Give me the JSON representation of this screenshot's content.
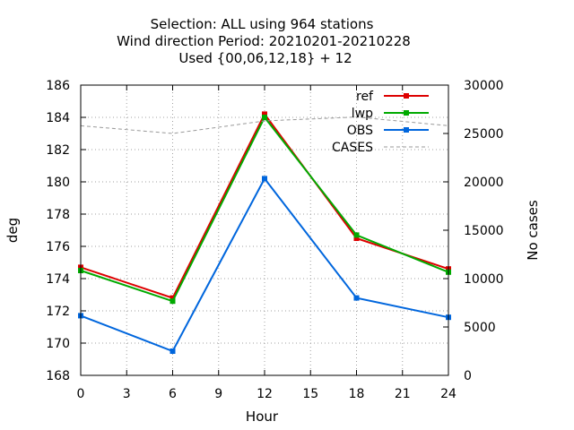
{
  "chart_data": {
    "type": "line",
    "title_lines": [
      "Selection: ALL using   964 stations",
      "Wind direction   Period: 20210201-20210228",
      "Used {00,06,12,18} + 12"
    ],
    "xlabel": "Hour",
    "ylabel": "deg",
    "y2label": "No cases",
    "xlim": [
      0,
      24
    ],
    "ylim": [
      168,
      186
    ],
    "y2lim": [
      0,
      30000
    ],
    "xticks": [
      "0",
      "3",
      "6",
      "9",
      "12",
      "15",
      "18",
      "21",
      "24"
    ],
    "yticks": [
      "168",
      "170",
      "172",
      "174",
      "176",
      "178",
      "180",
      "182",
      "184",
      "186"
    ],
    "y2ticks": [
      "0",
      "5000",
      "10000",
      "15000",
      "20000",
      "25000",
      "30000"
    ],
    "grid": true,
    "legend_position": "top-right",
    "x": [
      0,
      6,
      12,
      18,
      24
    ],
    "series": [
      {
        "name": "ref",
        "color": "#dd0000",
        "axis": "y",
        "style": "line-points",
        "values": [
          174.7,
          172.8,
          184.2,
          176.5,
          174.6
        ]
      },
      {
        "name": "lwp",
        "color": "#00aa00",
        "axis": "y",
        "style": "line-points",
        "values": [
          174.5,
          172.6,
          184.0,
          176.7,
          174.4
        ]
      },
      {
        "name": "OBS",
        "color": "#0066dd",
        "axis": "y",
        "style": "line-points",
        "values": [
          171.7,
          169.5,
          180.2,
          172.8,
          171.6
        ]
      },
      {
        "name": "CASES",
        "color": "#999999",
        "axis": "y2",
        "style": "dashed",
        "values": [
          25800,
          25000,
          26300,
          26700,
          25800
        ]
      }
    ]
  }
}
